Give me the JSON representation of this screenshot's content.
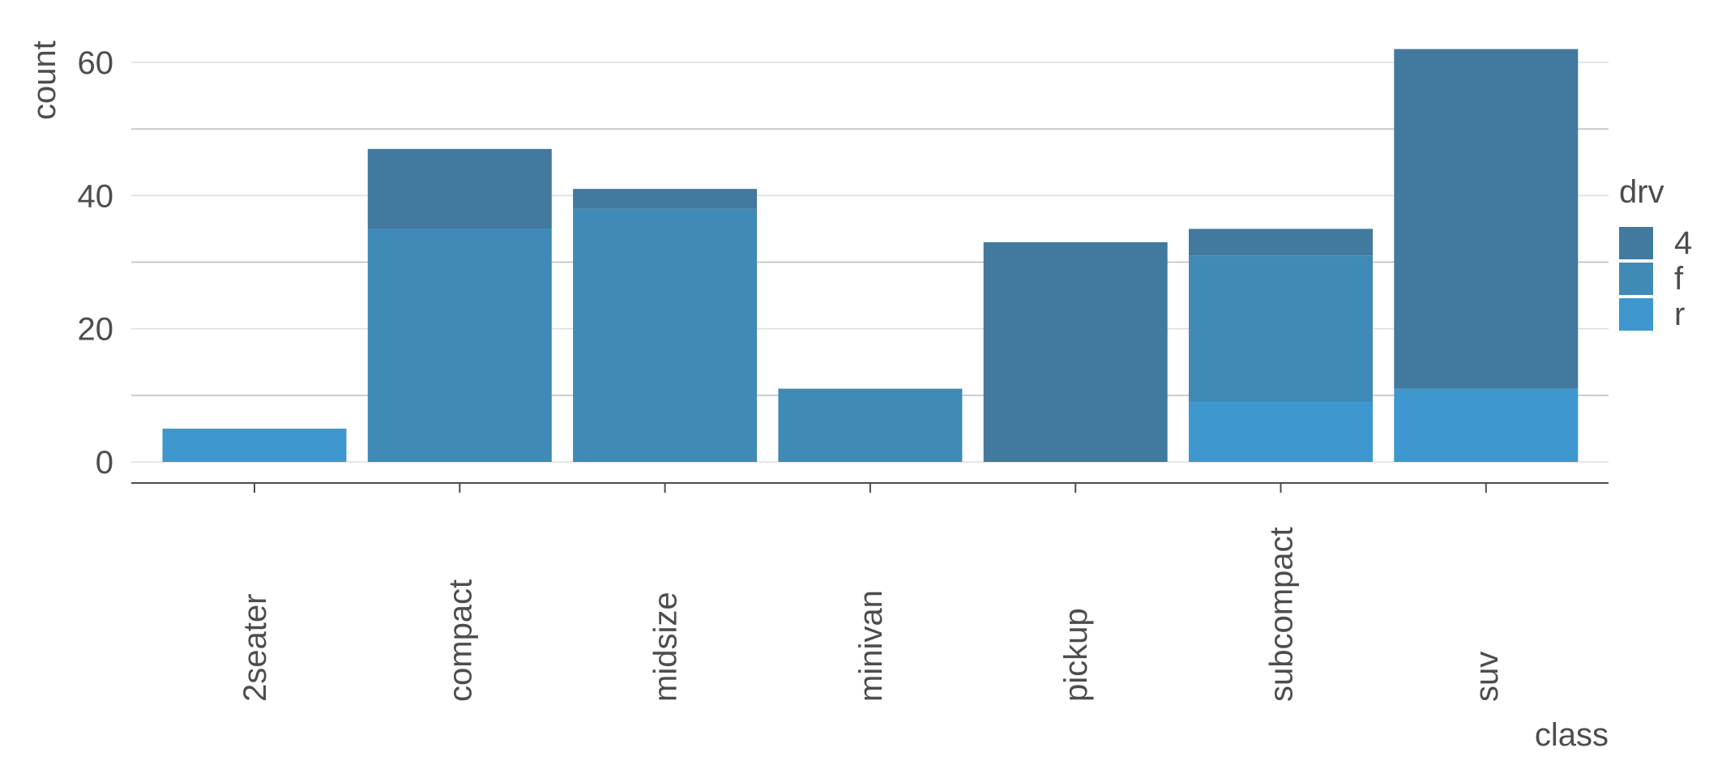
{
  "chart_data": {
    "type": "bar",
    "stacked": true,
    "title": "",
    "xlabel": "class",
    "ylabel": "count",
    "categories": [
      "2seater",
      "compact",
      "midsize",
      "minivan",
      "pickup",
      "subcompact",
      "suv"
    ],
    "series": [
      {
        "name": "r",
        "color": "#3e97cf",
        "values": [
          5,
          0,
          0,
          0,
          0,
          9,
          11
        ]
      },
      {
        "name": "f",
        "color": "#3f8ab6",
        "values": [
          0,
          35,
          38,
          11,
          0,
          22,
          0
        ]
      },
      {
        "name": "4",
        "color": "#41799f",
        "values": [
          0,
          12,
          3,
          0,
          33,
          4,
          51
        ]
      }
    ],
    "ylim": [
      0,
      65
    ],
    "yticks": [
      0,
      20,
      40,
      60
    ],
    "y_tick_labels": [
      "0",
      "20",
      "40",
      "60"
    ],
    "grid": true,
    "legend": {
      "title": "drv",
      "placement": "right",
      "order": [
        "4",
        "f",
        "r"
      ]
    }
  }
}
